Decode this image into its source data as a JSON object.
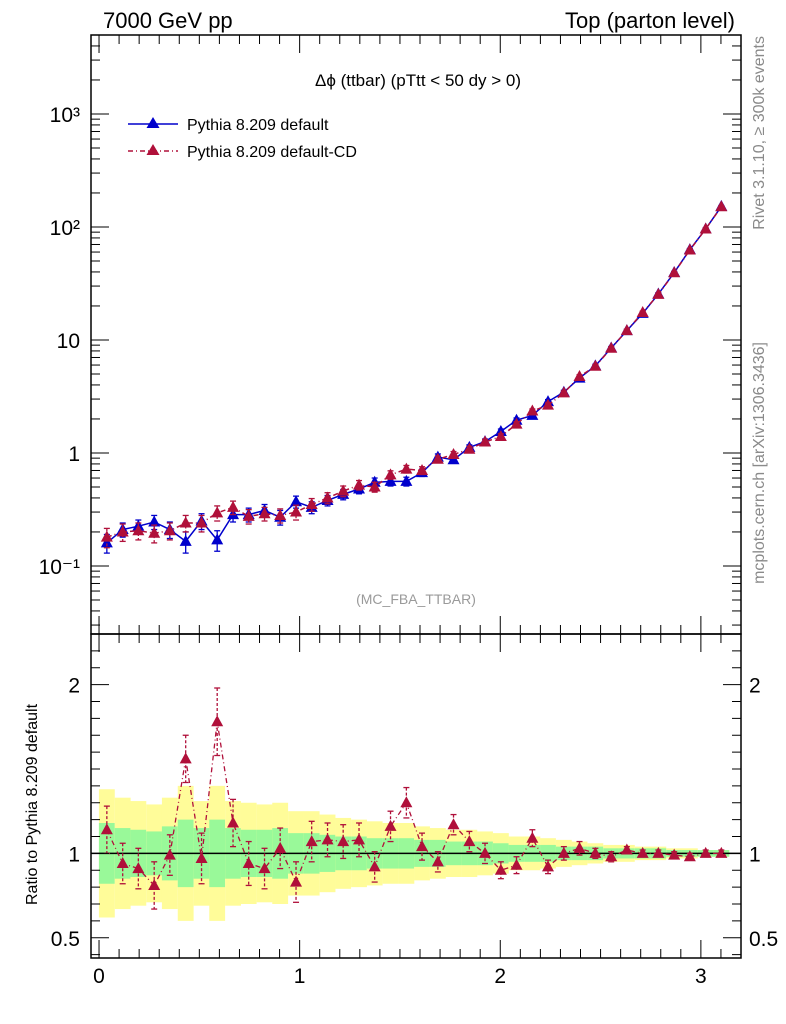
{
  "header": {
    "left": "7000 GeV pp",
    "right": "Top (parton level)"
  },
  "side": {
    "rivet": "Rivet 3.1.10, ≥ 300k events",
    "mcplots": "mcplots.cern.ch [arXiv:1306.3436]"
  },
  "watermark": "(MC_FBA_TTBAR)",
  "colors": {
    "series1": "#0000cc",
    "series2": "#b0103a",
    "band_inner": "#99f999",
    "band_outer": "#fffc99"
  },
  "chart_data": [
    {
      "type": "line",
      "panel": "main",
      "title": "Δϕ (ttbar) (pTtt < 50 dy > 0)",
      "yscale": "log",
      "xlim": [
        -0.04,
        3.2
      ],
      "ylim": [
        0.025,
        5000
      ],
      "yticks": [
        "10⁻¹",
        "1",
        "10",
        "10²",
        "10³"
      ],
      "legend": {
        "placement": "top-left",
        "entries": [
          "Pythia 8.209 default",
          "Pythia 8.209 default-CD"
        ]
      },
      "x": [
        0.039,
        0.118,
        0.196,
        0.275,
        0.353,
        0.432,
        0.511,
        0.589,
        0.668,
        0.746,
        0.825,
        0.903,
        0.982,
        1.06,
        1.139,
        1.217,
        1.296,
        1.374,
        1.453,
        1.532,
        1.61,
        1.689,
        1.767,
        1.846,
        1.924,
        2.003,
        2.081,
        2.16,
        2.238,
        2.317,
        2.395,
        2.474,
        2.553,
        2.631,
        2.71,
        2.788,
        2.867,
        2.945,
        3.024,
        3.102
      ],
      "series": [
        {
          "name": "Pythia 8.209 default",
          "values": [
            0.16,
            0.21,
            0.225,
            0.245,
            0.21,
            0.165,
            0.25,
            0.17,
            0.285,
            0.285,
            0.31,
            0.27,
            0.37,
            0.33,
            0.38,
            0.43,
            0.48,
            0.55,
            0.56,
            0.56,
            0.67,
            0.92,
            0.87,
            1.12,
            1.26,
            1.55,
            1.95,
            2.15,
            2.85,
            3.45,
            4.6,
            5.9,
            8.5,
            12.1,
            17.2,
            25.5,
            39.5,
            63,
            96,
            152
          ],
          "errors": [
            0.03,
            0.03,
            0.03,
            0.035,
            0.035,
            0.035,
            0.04,
            0.035,
            0.04,
            0.04,
            0.04,
            0.04,
            0.045,
            0.04,
            0.04,
            0.045,
            0.045,
            0.05,
            0.05,
            0.05,
            0.05,
            0.06,
            0.06,
            0.06,
            0.07,
            0.08,
            0.09,
            0.1,
            0.12,
            0.14,
            0.17,
            0.2,
            0.26,
            0.35,
            0.5,
            0.7,
            1.0,
            1.4,
            2.0,
            2.8
          ]
        },
        {
          "name": "Pythia 8.209 default-CD",
          "values": [
            0.18,
            0.2,
            0.205,
            0.195,
            0.205,
            0.24,
            0.24,
            0.295,
            0.33,
            0.275,
            0.29,
            0.28,
            0.3,
            0.35,
            0.4,
            0.46,
            0.52,
            0.5,
            0.64,
            0.72,
            0.7,
            0.88,
            0.97,
            1.08,
            1.25,
            1.4,
            1.8,
            2.35,
            2.65,
            3.4,
            4.75,
            5.85,
            8.45,
            12.1,
            17.5,
            25.3,
            39.3,
            62.5,
            96,
            151
          ],
          "errors": [
            0.035,
            0.035,
            0.035,
            0.035,
            0.035,
            0.04,
            0.04,
            0.045,
            0.045,
            0.04,
            0.04,
            0.04,
            0.045,
            0.045,
            0.045,
            0.05,
            0.05,
            0.05,
            0.055,
            0.055,
            0.055,
            0.06,
            0.06,
            0.065,
            0.07,
            0.08,
            0.09,
            0.1,
            0.12,
            0.14,
            0.17,
            0.2,
            0.26,
            0.35,
            0.5,
            0.7,
            1.0,
            1.4,
            2.0,
            2.8
          ]
        }
      ]
    },
    {
      "type": "line",
      "panel": "ratio",
      "ylabel": "Ratio to Pythia 8.209 default",
      "xlim": [
        -0.04,
        3.2
      ],
      "ylim": [
        0.38,
        2.3
      ],
      "xticks": [
        "0",
        "1",
        "2",
        "3"
      ],
      "yticks": [
        "0.5",
        "1",
        "2"
      ],
      "reference": 1.0,
      "x": [
        0.039,
        0.118,
        0.196,
        0.275,
        0.353,
        0.432,
        0.511,
        0.589,
        0.668,
        0.746,
        0.825,
        0.903,
        0.982,
        1.06,
        1.139,
        1.217,
        1.296,
        1.374,
        1.453,
        1.532,
        1.61,
        1.689,
        1.767,
        1.846,
        1.924,
        2.003,
        2.081,
        2.16,
        2.238,
        2.317,
        2.395,
        2.474,
        2.553,
        2.631,
        2.71,
        2.788,
        2.867,
        2.945,
        3.024,
        3.102
      ],
      "band_inner": [
        0.18,
        0.15,
        0.14,
        0.13,
        0.16,
        0.2,
        0.15,
        0.2,
        0.15,
        0.14,
        0.14,
        0.15,
        0.12,
        0.12,
        0.11,
        0.1,
        0.1,
        0.09,
        0.09,
        0.09,
        0.08,
        0.08,
        0.07,
        0.07,
        0.07,
        0.06,
        0.05,
        0.05,
        0.05,
        0.04,
        0.04,
        0.04,
        0.03,
        0.03,
        0.03,
        0.03,
        0.02,
        0.02,
        0.02,
        0.02
      ],
      "band_outer": [
        0.38,
        0.33,
        0.31,
        0.29,
        0.33,
        0.4,
        0.31,
        0.4,
        0.31,
        0.3,
        0.29,
        0.3,
        0.25,
        0.25,
        0.23,
        0.21,
        0.2,
        0.19,
        0.18,
        0.18,
        0.16,
        0.15,
        0.14,
        0.14,
        0.13,
        0.12,
        0.1,
        0.1,
        0.09,
        0.08,
        0.07,
        0.06,
        0.05,
        0.05,
        0.04,
        0.04,
        0.03,
        0.03,
        0.02,
        0.02
      ],
      "series": [
        {
          "name": "Pythia 8.209 default-CD",
          "values": [
            1.14,
            0.94,
            0.91,
            0.81,
            0.99,
            1.56,
            0.97,
            1.78,
            1.18,
            0.94,
            0.91,
            1.03,
            0.83,
            1.07,
            1.08,
            1.07,
            1.08,
            0.92,
            1.16,
            1.3,
            1.04,
            0.95,
            1.17,
            1.07,
            1.0,
            0.9,
            0.93,
            1.09,
            0.92,
            1.0,
            1.03,
            1.0,
            0.98,
            1.02,
            1.0,
            1.0,
            0.99,
            0.98,
            1.0,
            1.0
          ],
          "errors": [
            0.14,
            0.12,
            0.12,
            0.14,
            0.12,
            0.14,
            0.15,
            0.2,
            0.14,
            0.13,
            0.12,
            0.12,
            0.12,
            0.12,
            0.1,
            0.1,
            0.1,
            0.09,
            0.09,
            0.09,
            0.08,
            0.06,
            0.06,
            0.06,
            0.06,
            0.05,
            0.05,
            0.05,
            0.04,
            0.04,
            0.04,
            0.03,
            0.03,
            0.02,
            0.02,
            0.02,
            0.02,
            0.02,
            0.02,
            0.02
          ]
        }
      ]
    }
  ]
}
